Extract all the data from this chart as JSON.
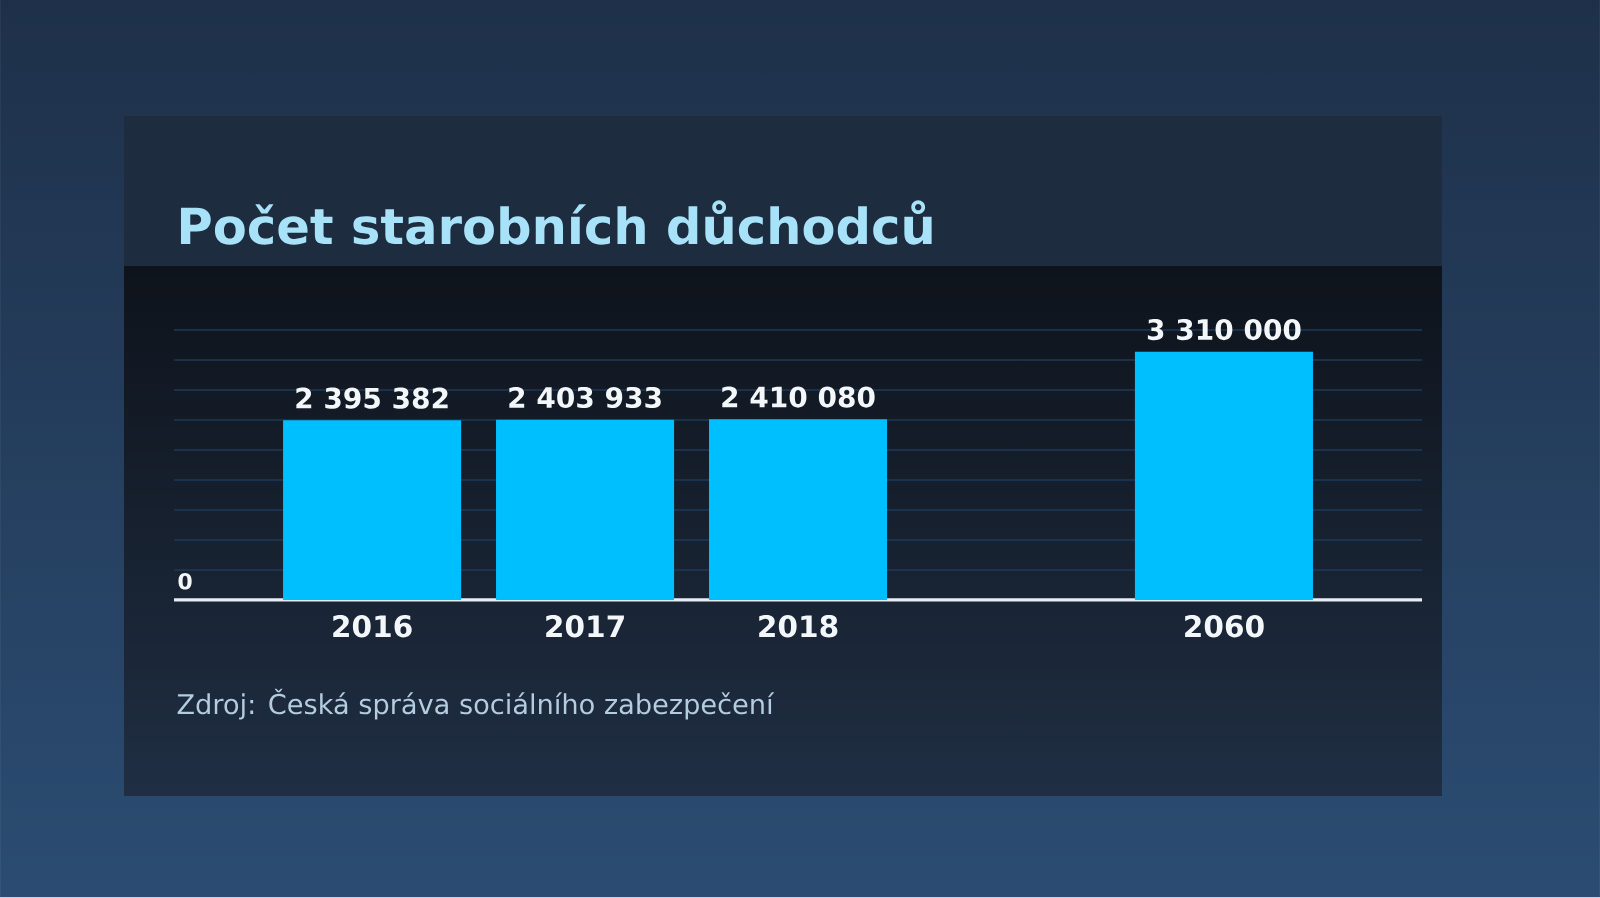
{
  "chart_data": {
    "type": "bar",
    "title": "Počet starobních důchodců",
    "categories": [
      "2016",
      "2017",
      "2018",
      null,
      "2060"
    ],
    "values": [
      2395382,
      2403933,
      2410080,
      null,
      3310000
    ],
    "value_labels": [
      "2 395 382",
      "2 403 933",
      "2 410 080",
      null,
      "3 310 000"
    ],
    "color": "#00bfff",
    "ylim": [
      0,
      3600000
    ],
    "yticks": [
      {
        "value": 0,
        "label": null
      },
      {
        "value": 400000,
        "label": null
      },
      {
        "value": 800000,
        "label": null
      },
      {
        "value": 1200000,
        "label": null
      },
      {
        "value": 1600000,
        "label": null
      },
      {
        "value": 2000000,
        "label": null
      },
      {
        "value": 2400000,
        "label": null
      },
      {
        "value": 2800000,
        "label": null
      },
      {
        "value": 3200000,
        "label": null
      },
      {
        "value": 3600000,
        "label": null
      }
    ],
    "grid": "y",
    "annotations": [
      "0",
      "Zdroj: Česká správa sociálního zabezpečení"
    ]
  }
}
